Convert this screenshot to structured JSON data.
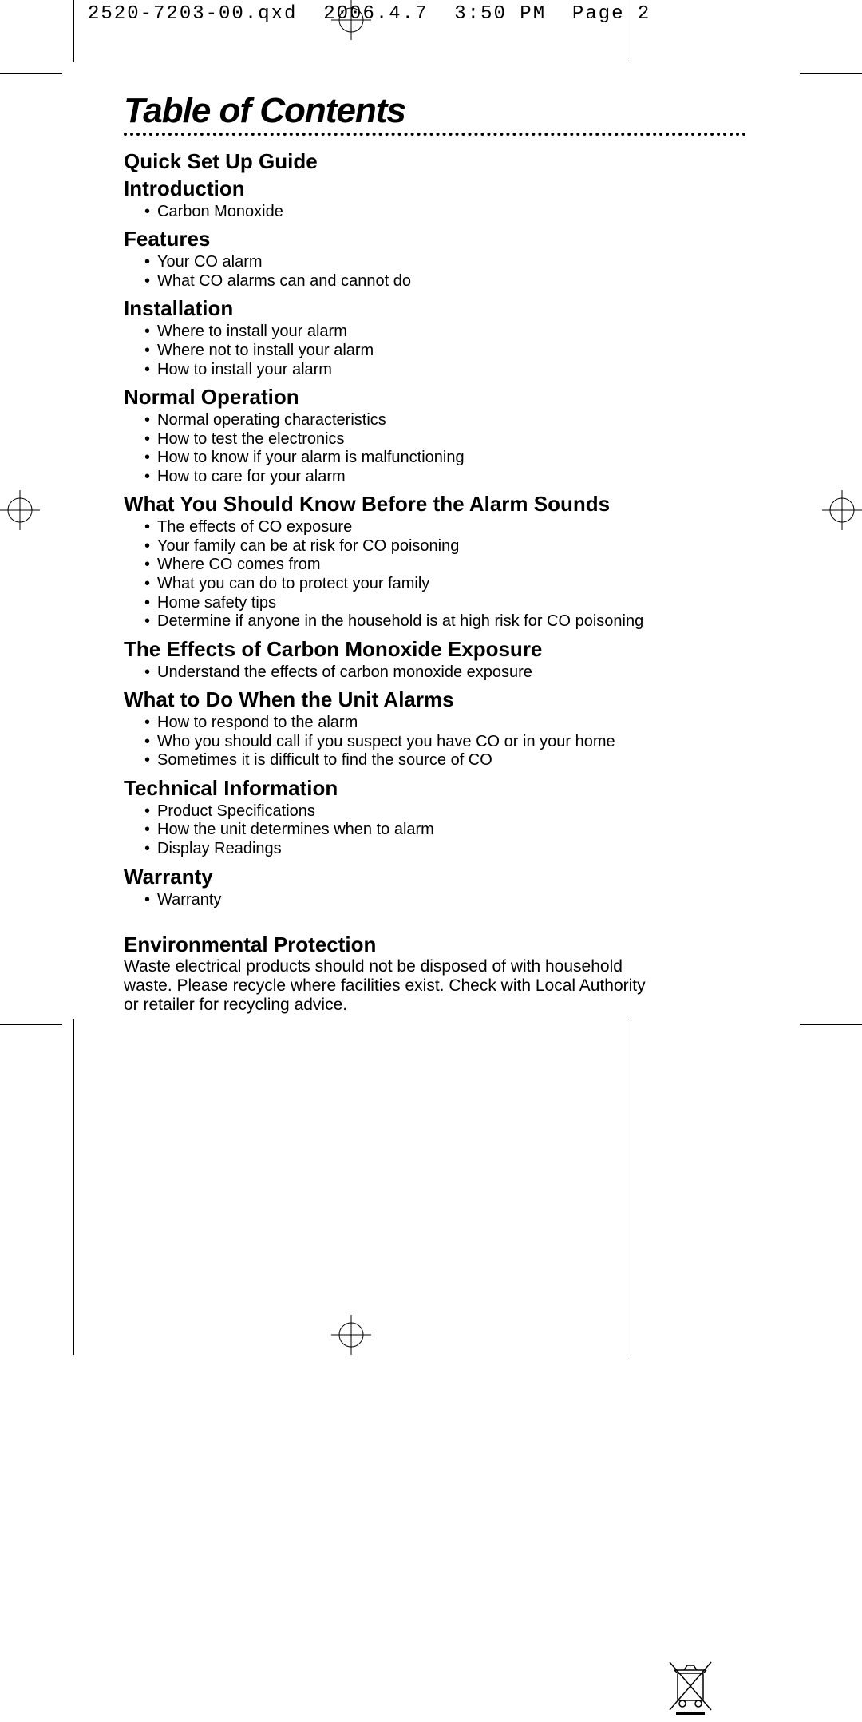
{
  "slug_filename": "2520-7203-00.qxd",
  "slug_date": "2006.4.7",
  "slug_time": "3:50 PM",
  "slug_page": "Page 2",
  "title": "Table of Contents",
  "sections": [
    {
      "heading": "Quick Set Up Guide",
      "items": []
    },
    {
      "heading": "Introduction",
      "items": [
        "Carbon Monoxide"
      ]
    },
    {
      "heading": "Features",
      "items": [
        "Your CO  alarm",
        "What CO alarms can and cannot do"
      ]
    },
    {
      "heading": "Installation",
      "items": [
        "Where to install your alarm",
        "Where not to install your alarm",
        "How to install your alarm"
      ]
    },
    {
      "heading": "Normal Operation",
      "items": [
        "Normal operating characteristics",
        "How to test the electronics",
        "How to know if your alarm is malfunctioning",
        "How to care for your alarm"
      ]
    },
    {
      "heading": "What You Should Know Before the Alarm Sounds",
      "items": [
        "The effects of CO exposure",
        "Your family can be at risk for CO poisoning",
        "Where CO comes from",
        "What you can do to protect your family",
        "Home safety tips",
        "Determine if anyone in the household is at high risk for CO poisoning"
      ]
    },
    {
      "heading": "The Effects of Carbon Monoxide Exposure",
      "items": [
        "Understand the effects of carbon monoxide exposure"
      ]
    },
    {
      "heading": "What to Do When the Unit Alarms",
      "items": [
        "How to respond to the alarm",
        "Who you should call if you suspect you have CO or in your home",
        "Sometimes it is difficult to find the source of CO"
      ]
    },
    {
      "heading": "Technical Information",
      "items": [
        "Product Specifications",
        "How the unit determines when to alarm",
        "Display Readings"
      ]
    },
    {
      "heading": "Warranty",
      "items": [
        "Warranty"
      ]
    }
  ],
  "env_heading": "Environmental Protection",
  "env_text": "Waste electrical products should not be disposed of with household waste.  Please recycle where facilities exist.  Check with Local Authority or retailer for recycling advice.",
  "colors": {
    "text": "#000000",
    "bg": "#ffffff"
  }
}
